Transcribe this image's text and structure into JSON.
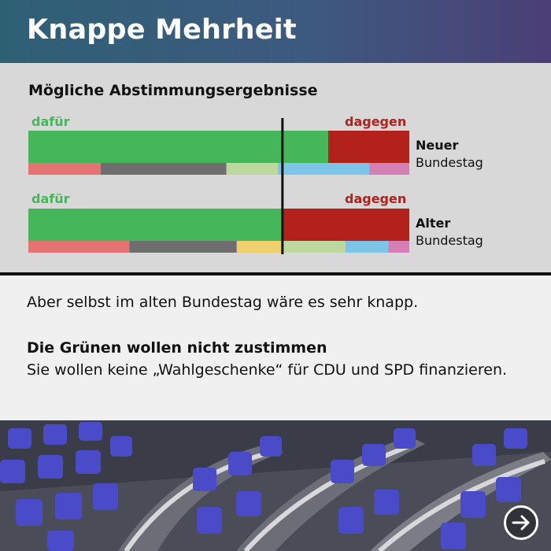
{
  "header": {
    "title": "Knappe Mehrheit"
  },
  "chart_data": {
    "type": "bar",
    "title": "Mögliche Abstimmungsergebnisse",
    "label_for": "dafür",
    "label_against": "dagegen",
    "rows": [
      {
        "name_bold": "Neuer",
        "name_rest": "Bundestag",
        "for_fraction": 0.787,
        "against_fraction": 0.213,
        "segments": [
          {
            "value": 0.19,
            "color": "#e57373"
          },
          {
            "value": 0.33,
            "color": "#6e6e6e"
          },
          {
            "value": 0.135,
            "color": "#bcd89c"
          },
          {
            "value": 0.24,
            "color": "#7cc4e8"
          },
          {
            "value": 0.105,
            "color": "#d57fb5"
          }
        ]
      },
      {
        "name_bold": "Alter",
        "name_rest": "Bundestag",
        "for_fraction": 0.667,
        "against_fraction": 0.333,
        "segments": [
          {
            "value": 0.265,
            "color": "#e57373"
          },
          {
            "value": 0.282,
            "color": "#6e6e6e"
          },
          {
            "value": 0.12,
            "color": "#f0d06e"
          },
          {
            "value": 0.165,
            "color": "#bcd89c"
          },
          {
            "value": 0.113,
            "color": "#7cc4e8"
          },
          {
            "value": 0.055,
            "color": "#d57fb5"
          }
        ]
      }
    ],
    "majority_line": 0.667,
    "colors": {
      "for": "#45b75a",
      "against": "#b3211c"
    }
  },
  "text": {
    "line1": "Aber selbst im alten Bundestag wäre es sehr knapp.",
    "heading": "Die Grünen wollen nicht zustimmen",
    "body": "Sie wollen keine „Wahlgeschenke“ für CDU und SPD finanzieren."
  },
  "photo": {
    "icon": "arrow-right-icon"
  }
}
